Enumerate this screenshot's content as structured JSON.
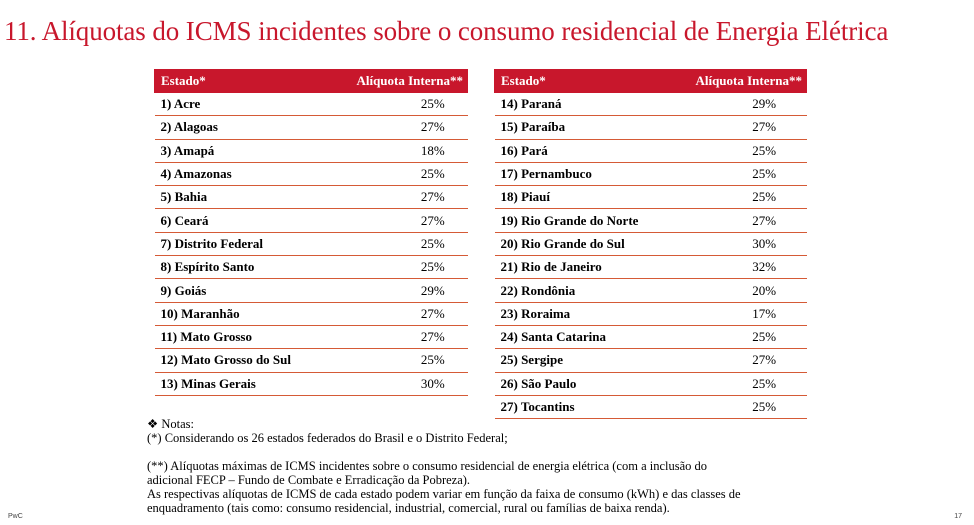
{
  "title": "11. Alíquotas do ICMS incidentes sobre o consumo residencial de Energia Elétrica",
  "table": {
    "header_state": "Estado*",
    "header_rate": "Alíquota Interna**"
  },
  "left_rows": [
    {
      "state": "1) Acre",
      "rate": "25%"
    },
    {
      "state": "2) Alagoas",
      "rate": "27%"
    },
    {
      "state": "3) Amapá",
      "rate": "18%"
    },
    {
      "state": "4) Amazonas",
      "rate": "25%"
    },
    {
      "state": "5) Bahia",
      "rate": "27%"
    },
    {
      "state": "6) Ceará",
      "rate": "27%"
    },
    {
      "state": "7) Distrito Federal",
      "rate": "25%"
    },
    {
      "state": "8) Espírito Santo",
      "rate": "25%"
    },
    {
      "state": "9) Goiás",
      "rate": "29%"
    },
    {
      "state": "10) Maranhão",
      "rate": "27%"
    },
    {
      "state": "11) Mato Grosso",
      "rate": "27%"
    },
    {
      "state": "12) Mato Grosso do Sul",
      "rate": "25%"
    },
    {
      "state": "13) Minas Gerais",
      "rate": "30%"
    }
  ],
  "right_rows": [
    {
      "state": "14) Paraná",
      "rate": "29%"
    },
    {
      "state": "15) Paraíba",
      "rate": "27%"
    },
    {
      "state": "16) Pará",
      "rate": "25%"
    },
    {
      "state": "17) Pernambuco",
      "rate": "25%"
    },
    {
      "state": "18) Piauí",
      "rate": "25%"
    },
    {
      "state": "19) Rio Grande do Norte",
      "rate": "27%"
    },
    {
      "state": "20) Rio Grande do Sul",
      "rate": "30%"
    },
    {
      "state": "21) Rio de Janeiro",
      "rate": "32%"
    },
    {
      "state": "22) Rondônia",
      "rate": "20%"
    },
    {
      "state": "23) Roraima",
      "rate": "17%"
    },
    {
      "state": "24) Santa Catarina",
      "rate": "25%"
    },
    {
      "state": "25) Sergipe",
      "rate": "27%"
    },
    {
      "state": "26) São Paulo",
      "rate": "25%"
    },
    {
      "state": "27) Tocantins",
      "rate": "25%"
    }
  ],
  "notes": {
    "heading": "❖ Notas:",
    "note1": "(*) Considerando os 26 estados federados do Brasil e o Distrito Federal;",
    "note2_line1": "(**) Alíquotas máximas de ICMS incidentes sobre o consumo residencial de energia elétrica (com a inclusão do",
    "note2_line2": "adicional FECP – Fundo de Combate e Erradicação da Pobreza).",
    "note3_line1": "As respectivas alíquotas de ICMS de cada estado podem variar em função da faixa de consumo (kWh) e das classes de",
    "note3_line2": "enquadramento (tais como: consumo residencial, industrial, comercial, rural ou famílias de baixa renda)."
  },
  "footer": {
    "brand": "PwC",
    "page": "17"
  }
}
